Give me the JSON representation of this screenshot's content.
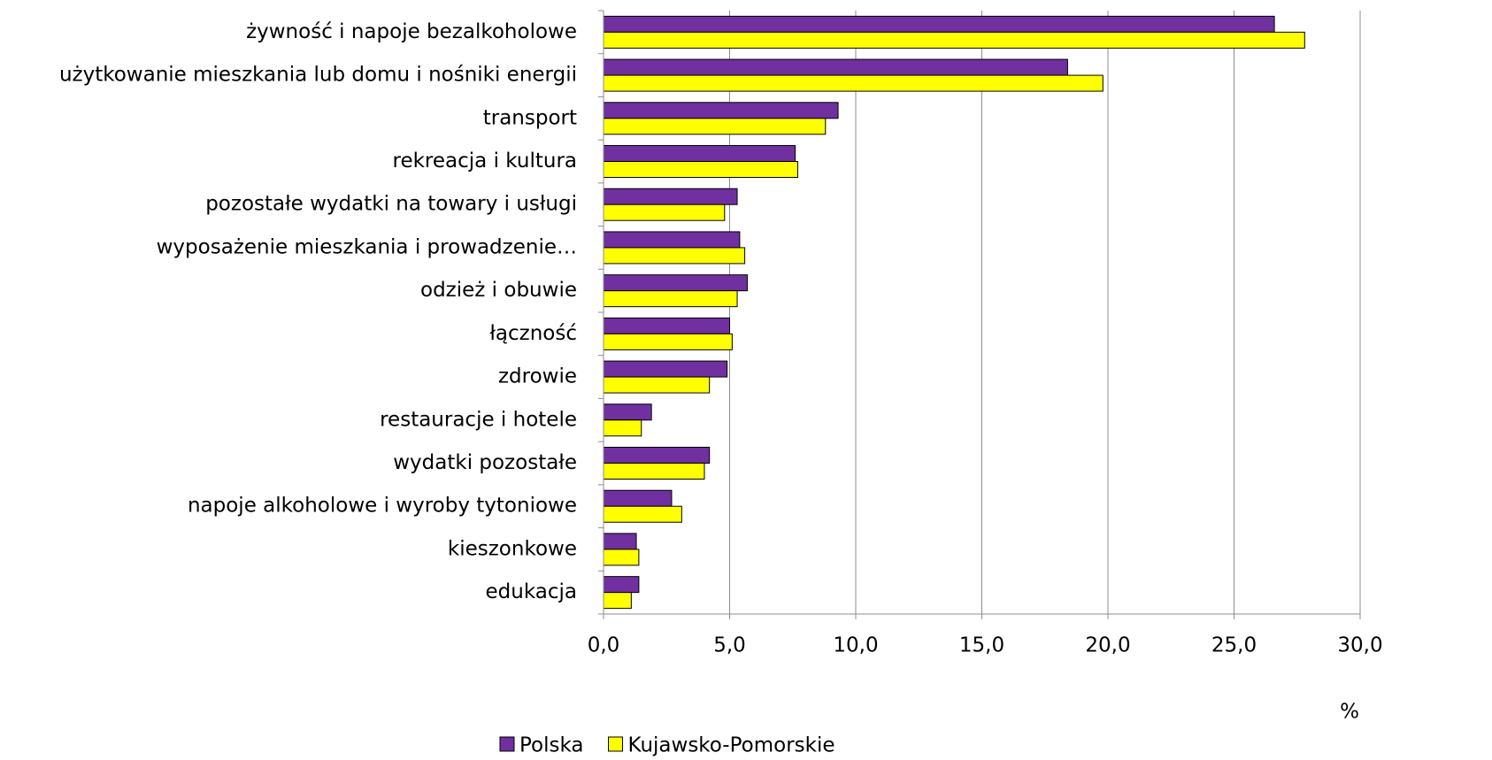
{
  "chart_data": {
    "type": "bar",
    "orientation": "horizontal",
    "categories": [
      "żywność i napoje bezalkoholowe",
      "użytkowanie mieszkania lub domu i nośniki energii",
      "transport",
      "rekreacja i kultura",
      "pozostałe wydatki na towary i usługi",
      "wyposażenie mieszkania i prowadzenie…",
      "odzież i obuwie",
      "łączność",
      "zdrowie",
      "restauracje i hotele",
      "wydatki pozostałe",
      "napoje alkoholowe i wyroby tytoniowe",
      "kieszonkowe",
      "edukacja"
    ],
    "series": [
      {
        "name": "Polska",
        "color": "#7030a0",
        "values": [
          26.6,
          18.4,
          9.3,
          7.6,
          5.3,
          5.4,
          5.7,
          5.0,
          4.9,
          1.9,
          4.2,
          2.7,
          1.3,
          1.4
        ]
      },
      {
        "name": "Kujawsko-Pomorskie",
        "color": "#ffff00",
        "values": [
          27.8,
          19.8,
          8.8,
          7.7,
          4.8,
          5.6,
          5.3,
          5.1,
          4.2,
          1.5,
          4.0,
          3.1,
          1.4,
          1.1
        ]
      }
    ],
    "xlabel": "%",
    "xlim": [
      0,
      30
    ],
    "xticks": [
      {
        "value": 0,
        "label": "0,0"
      },
      {
        "value": 5,
        "label": "5,0"
      },
      {
        "value": 10,
        "label": "10,0"
      },
      {
        "value": 15,
        "label": "15,0"
      },
      {
        "value": 20,
        "label": "20,0"
      },
      {
        "value": 25,
        "label": "25,0"
      },
      {
        "value": 30,
        "label": "30,0"
      }
    ],
    "grid": true,
    "legend": "bottom"
  }
}
